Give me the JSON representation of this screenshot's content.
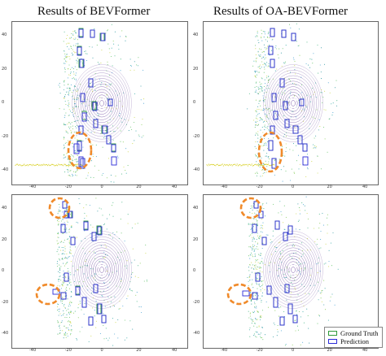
{
  "titles": {
    "left": "Results of BEVFormer",
    "right": "Results of OA-BEVFormer"
  },
  "ticks": {
    "top_left_y": [
      "40",
      "20",
      "0",
      "-20",
      "-40"
    ],
    "top_left_x": [
      "-40",
      "-20",
      "0",
      "20",
      "40"
    ],
    "top_right_y": [
      "40",
      "20",
      "0",
      "-20",
      "-40"
    ],
    "top_right_x": [
      "-40",
      "-20",
      "0",
      "20",
      "40"
    ],
    "bot_left_y": [
      "40",
      "20",
      "0",
      "-20",
      "-40"
    ],
    "bot_left_x": [
      "-40",
      "-20",
      "0",
      "20",
      "40"
    ],
    "bot_right_y": [
      "40",
      "20",
      "0",
      "-20",
      "-40"
    ],
    "bot_right_x": [
      "-40",
      "-20",
      "0",
      "20",
      "40"
    ]
  },
  "legend": {
    "ground_truth": "Ground Truth",
    "prediction": "Prediction"
  },
  "colors": {
    "ground_truth": "#2e9a3a",
    "prediction": "#2b2bd8",
    "highlight": "#f08a2a",
    "ego_rings": "#4b1c86"
  }
}
